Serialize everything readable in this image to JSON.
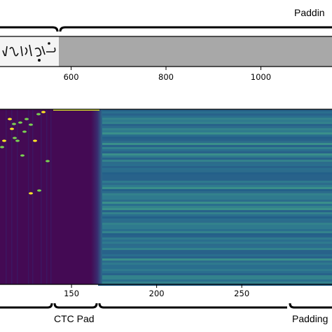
{
  "annotations": {
    "top_right": "Paddin",
    "bottom_middle": "CTC Pad",
    "bottom_right": "Padding"
  },
  "chart_data": [
    {
      "type": "image",
      "description_label": "",
      "x_ticks": [
        600,
        800,
        1000
      ],
      "xlim": [
        450,
        1150
      ],
      "text_region_end_x": 560,
      "padding_region_color": "#a8a8a8"
    },
    {
      "type": "heatmap",
      "x_ticks": [
        150,
        200,
        250
      ],
      "xlim": [
        108,
        303
      ],
      "active_region_end_x": 135,
      "ctc_pad_end_x": 160,
      "colors": {
        "low": "#440a54",
        "mid": "#2a6f8e",
        "high": "#fde725"
      }
    }
  ]
}
